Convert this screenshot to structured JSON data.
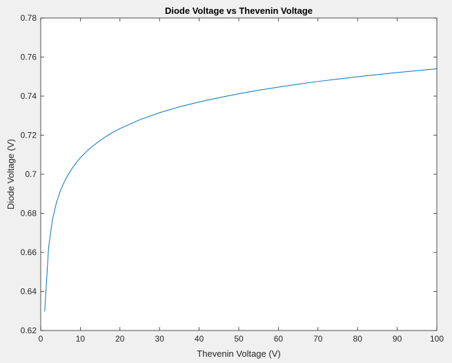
{
  "chart_data": {
    "type": "line",
    "title": "Diode Voltage vs Thevenin Voltage",
    "xlabel": "Thevenin Voltage (V)",
    "ylabel": "Diode Voltage (V)",
    "xlim": [
      0,
      100
    ],
    "ylim": [
      0.62,
      0.78
    ],
    "xticks": [
      0,
      10,
      20,
      30,
      40,
      50,
      60,
      70,
      80,
      90,
      100
    ],
    "xtick_labels": [
      "0",
      "10",
      "20",
      "30",
      "40",
      "50",
      "60",
      "70",
      "80",
      "90",
      "100"
    ],
    "yticks": [
      0.62,
      0.64,
      0.66,
      0.68,
      0.7,
      0.72,
      0.74,
      0.76,
      0.78
    ],
    "ytick_labels": [
      "0.62",
      "0.64",
      "0.66",
      "0.68",
      "0.7",
      "0.72",
      "0.74",
      "0.76",
      "0.78"
    ],
    "grid": false,
    "series": [
      {
        "color": "#0072bd",
        "x": [
          1,
          2,
          3,
          4,
          5,
          6,
          7,
          8,
          9,
          10,
          12,
          14,
          16,
          18,
          20,
          25,
          30,
          35,
          40,
          45,
          50,
          55,
          60,
          65,
          70,
          75,
          80,
          85,
          90,
          95,
          100
        ],
        "y": [
          0.6297,
          0.6627,
          0.6772,
          0.6857,
          0.6917,
          0.6963,
          0.7001,
          0.7032,
          0.706,
          0.7084,
          0.7125,
          0.7158,
          0.7187,
          0.7212,
          0.7234,
          0.7279,
          0.7315,
          0.7345,
          0.737,
          0.7392,
          0.7412,
          0.743,
          0.7446,
          0.7461,
          0.7475,
          0.7487,
          0.7499,
          0.751,
          0.7521,
          0.753,
          0.754
        ]
      }
    ]
  }
}
